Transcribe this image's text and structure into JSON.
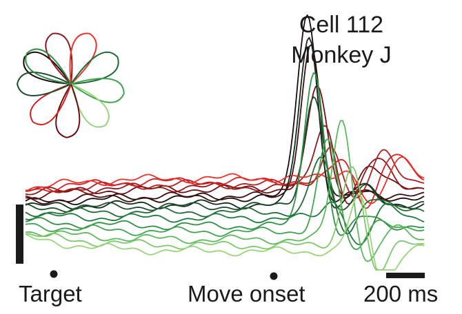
{
  "title_line1": "Cell 112",
  "title_line2": "Monkey J",
  "label_target": "Target",
  "label_move_onset": "Move onset",
  "label_scalebar": "200 ms",
  "palette": [
    "#1a0a0a",
    "#3b0d0d",
    "#6b0f14",
    "#8b1a1a",
    "#b01e1e",
    "#d42020",
    "#e8322a",
    "#0f2b1a",
    "#1e4d2b",
    "#1f6b35",
    "#1e7a3c",
    "#2f8f45",
    "#3fa34d",
    "#5cb85c",
    "#7cc96a",
    "#9ad47a"
  ],
  "chart_data": {
    "type": "line",
    "title": "Cell 112 Monkey J",
    "x_unit": "ms",
    "x_range": [
      -900,
      250
    ],
    "y_range": [
      -1,
      1
    ],
    "event_markers": [
      {
        "label": "Target",
        "x": -900
      },
      {
        "label": "Move onset",
        "x": 0
      }
    ],
    "scale_bar": {
      "label": "200 ms",
      "length": 200
    },
    "n_conditions": 16,
    "series": [
      {
        "peak": 1.0,
        "latency": -90,
        "dip": 0.1,
        "late": 0.05,
        "base": 0.02,
        "drift": 0.05
      },
      {
        "peak": 0.82,
        "latency": -80,
        "dip": 0.12,
        "late": 0.08,
        "base": 0.03,
        "drift": 0.04
      },
      {
        "peak": 0.55,
        "latency": -60,
        "dip": 0.18,
        "late": 0.25,
        "base": 0.06,
        "drift": 0.06
      },
      {
        "peak": 0.35,
        "latency": -40,
        "dip": 0.3,
        "late": 0.3,
        "base": 0.07,
        "drift": 0.06
      },
      {
        "peak": 0.2,
        "latency": -20,
        "dip": 0.35,
        "late": 0.38,
        "base": 0.08,
        "drift": 0.07
      },
      {
        "peak": 0.12,
        "latency": 10,
        "dip": 0.4,
        "late": 0.3,
        "base": 0.09,
        "drift": 0.08
      },
      {
        "peak": 0.05,
        "latency": 30,
        "dip": 0.45,
        "late": 0.2,
        "base": 0.1,
        "drift": 0.09
      },
      {
        "peak": 0.9,
        "latency": -85,
        "dip": 0.12,
        "late": 0.2,
        "base": 0.0,
        "drift": 0.02
      },
      {
        "peak": 0.6,
        "latency": -70,
        "dip": 0.2,
        "late": 0.22,
        "base": -0.01,
        "drift": 0.02
      },
      {
        "peak": 0.3,
        "latency": -50,
        "dip": 0.35,
        "late": 0.18,
        "base": -0.03,
        "drift": 0.0
      },
      {
        "peak": 0.1,
        "latency": -10,
        "dip": 0.45,
        "late": 0.12,
        "base": -0.05,
        "drift": -0.02
      },
      {
        "peak": 0.85,
        "latency": -70,
        "dip": 0.2,
        "late": 0.1,
        "base": -0.08,
        "drift": -0.04
      },
      {
        "peak": 0.5,
        "latency": -30,
        "dip": 0.35,
        "late": 0.15,
        "base": -0.1,
        "drift": -0.06
      },
      {
        "peak": 0.65,
        "latency": 10,
        "dip": 0.4,
        "late": 0.12,
        "base": -0.13,
        "drift": -0.08
      },
      {
        "peak": 0.45,
        "latency": 40,
        "dip": 0.5,
        "late": 0.08,
        "base": -0.15,
        "drift": -0.1
      },
      {
        "peak": 0.3,
        "latency": 60,
        "dip": 0.55,
        "late": 0.05,
        "base": -0.17,
        "drift": -0.12
      }
    ]
  }
}
